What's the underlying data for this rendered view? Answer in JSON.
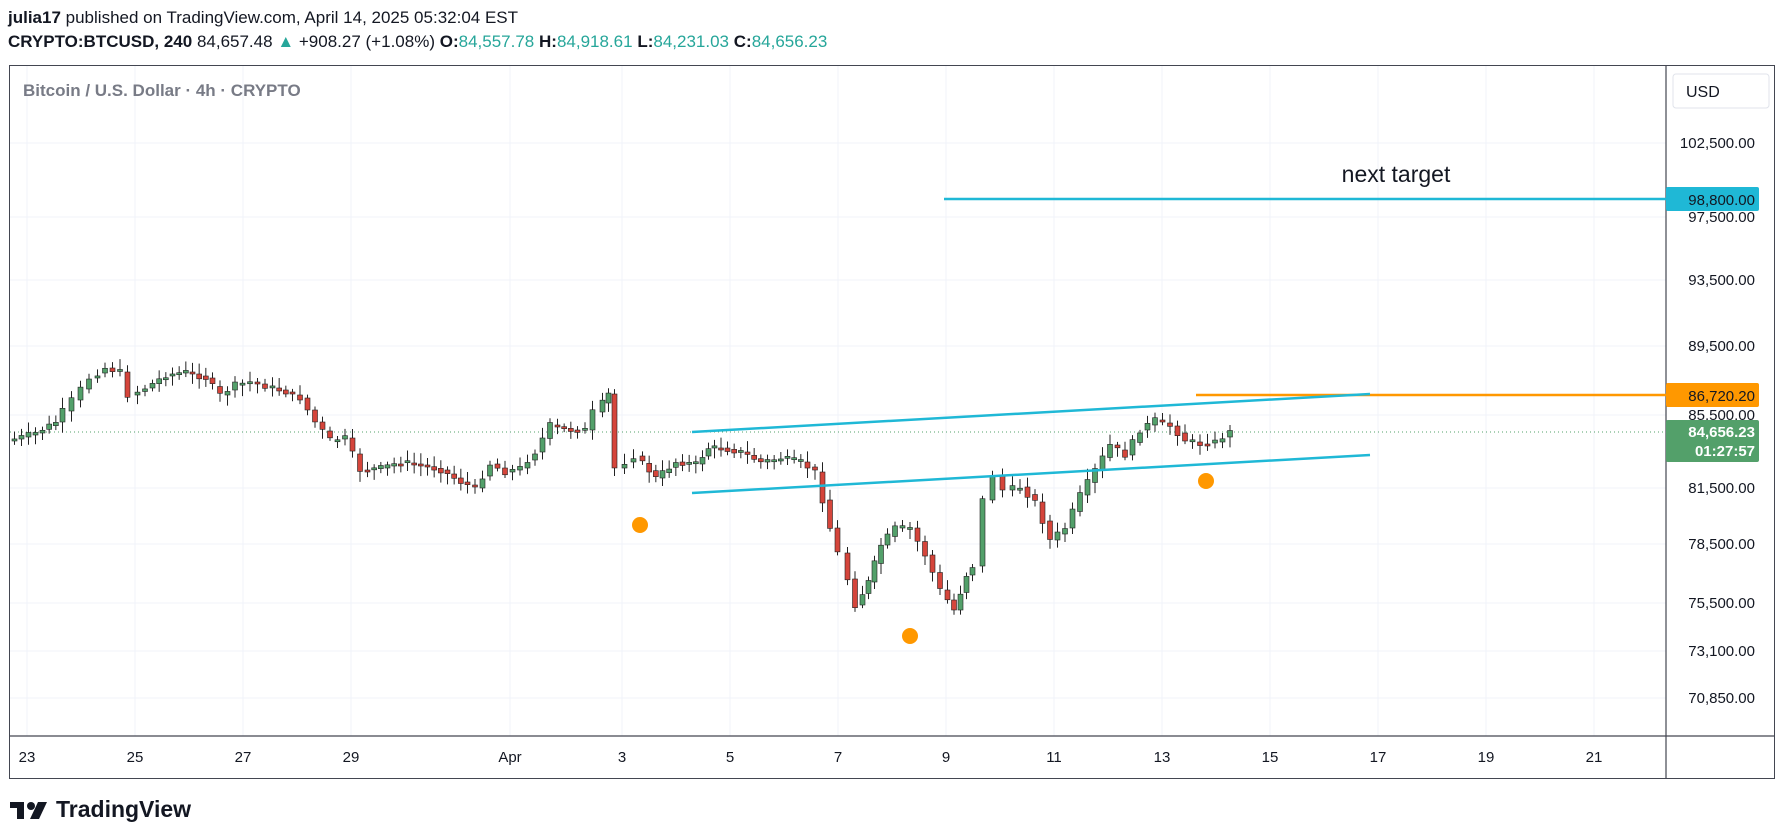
{
  "header": {
    "user": "julia17",
    "published": " published on TradingView.com, April 14, 2025 05:32:04 EST",
    "symbol": "CRYPTO:BTCUSD, 240",
    "last": "84,657.48",
    "change": "+908.27 (+1.08%)",
    "open_label": "O:",
    "open": "84,557.78",
    "high_label": "H:",
    "high": "84,918.61",
    "low_label": "L:",
    "low": "84,231.03",
    "close_label": "C:",
    "close": "84,656.23"
  },
  "chart": {
    "title": "Bitcoin / U.S. Dollar · 4h · CRYPTO",
    "currency": "USD",
    "price_labels": [
      "102,500.00",
      "97,500.00",
      "93,500.00",
      "89,500.00",
      "85,500.00",
      "81,500.00",
      "78,500.00",
      "75,500.00",
      "73,100.00",
      "70,850.00"
    ],
    "date_labels": [
      "23",
      "25",
      "27",
      "29",
      "Apr",
      "3",
      "5",
      "7",
      "9",
      "11",
      "13",
      "15",
      "17",
      "19",
      "21"
    ],
    "annotation": "next target",
    "target_tag": "98,800.00",
    "resistance_tag": "86,720.20",
    "current_tag": "84,656.23",
    "countdown_tag": "01:27:57"
  },
  "colors": {
    "up": "#26a69a",
    "down": "#ef5350",
    "candle_up": "#53a06a",
    "candle_down": "#d5453b",
    "trend": "#1fb8d6",
    "orange": "#ff9800"
  },
  "footer": {
    "brand": "TradingView",
    "logo_icon": "tradingview-logo-icon"
  }
}
